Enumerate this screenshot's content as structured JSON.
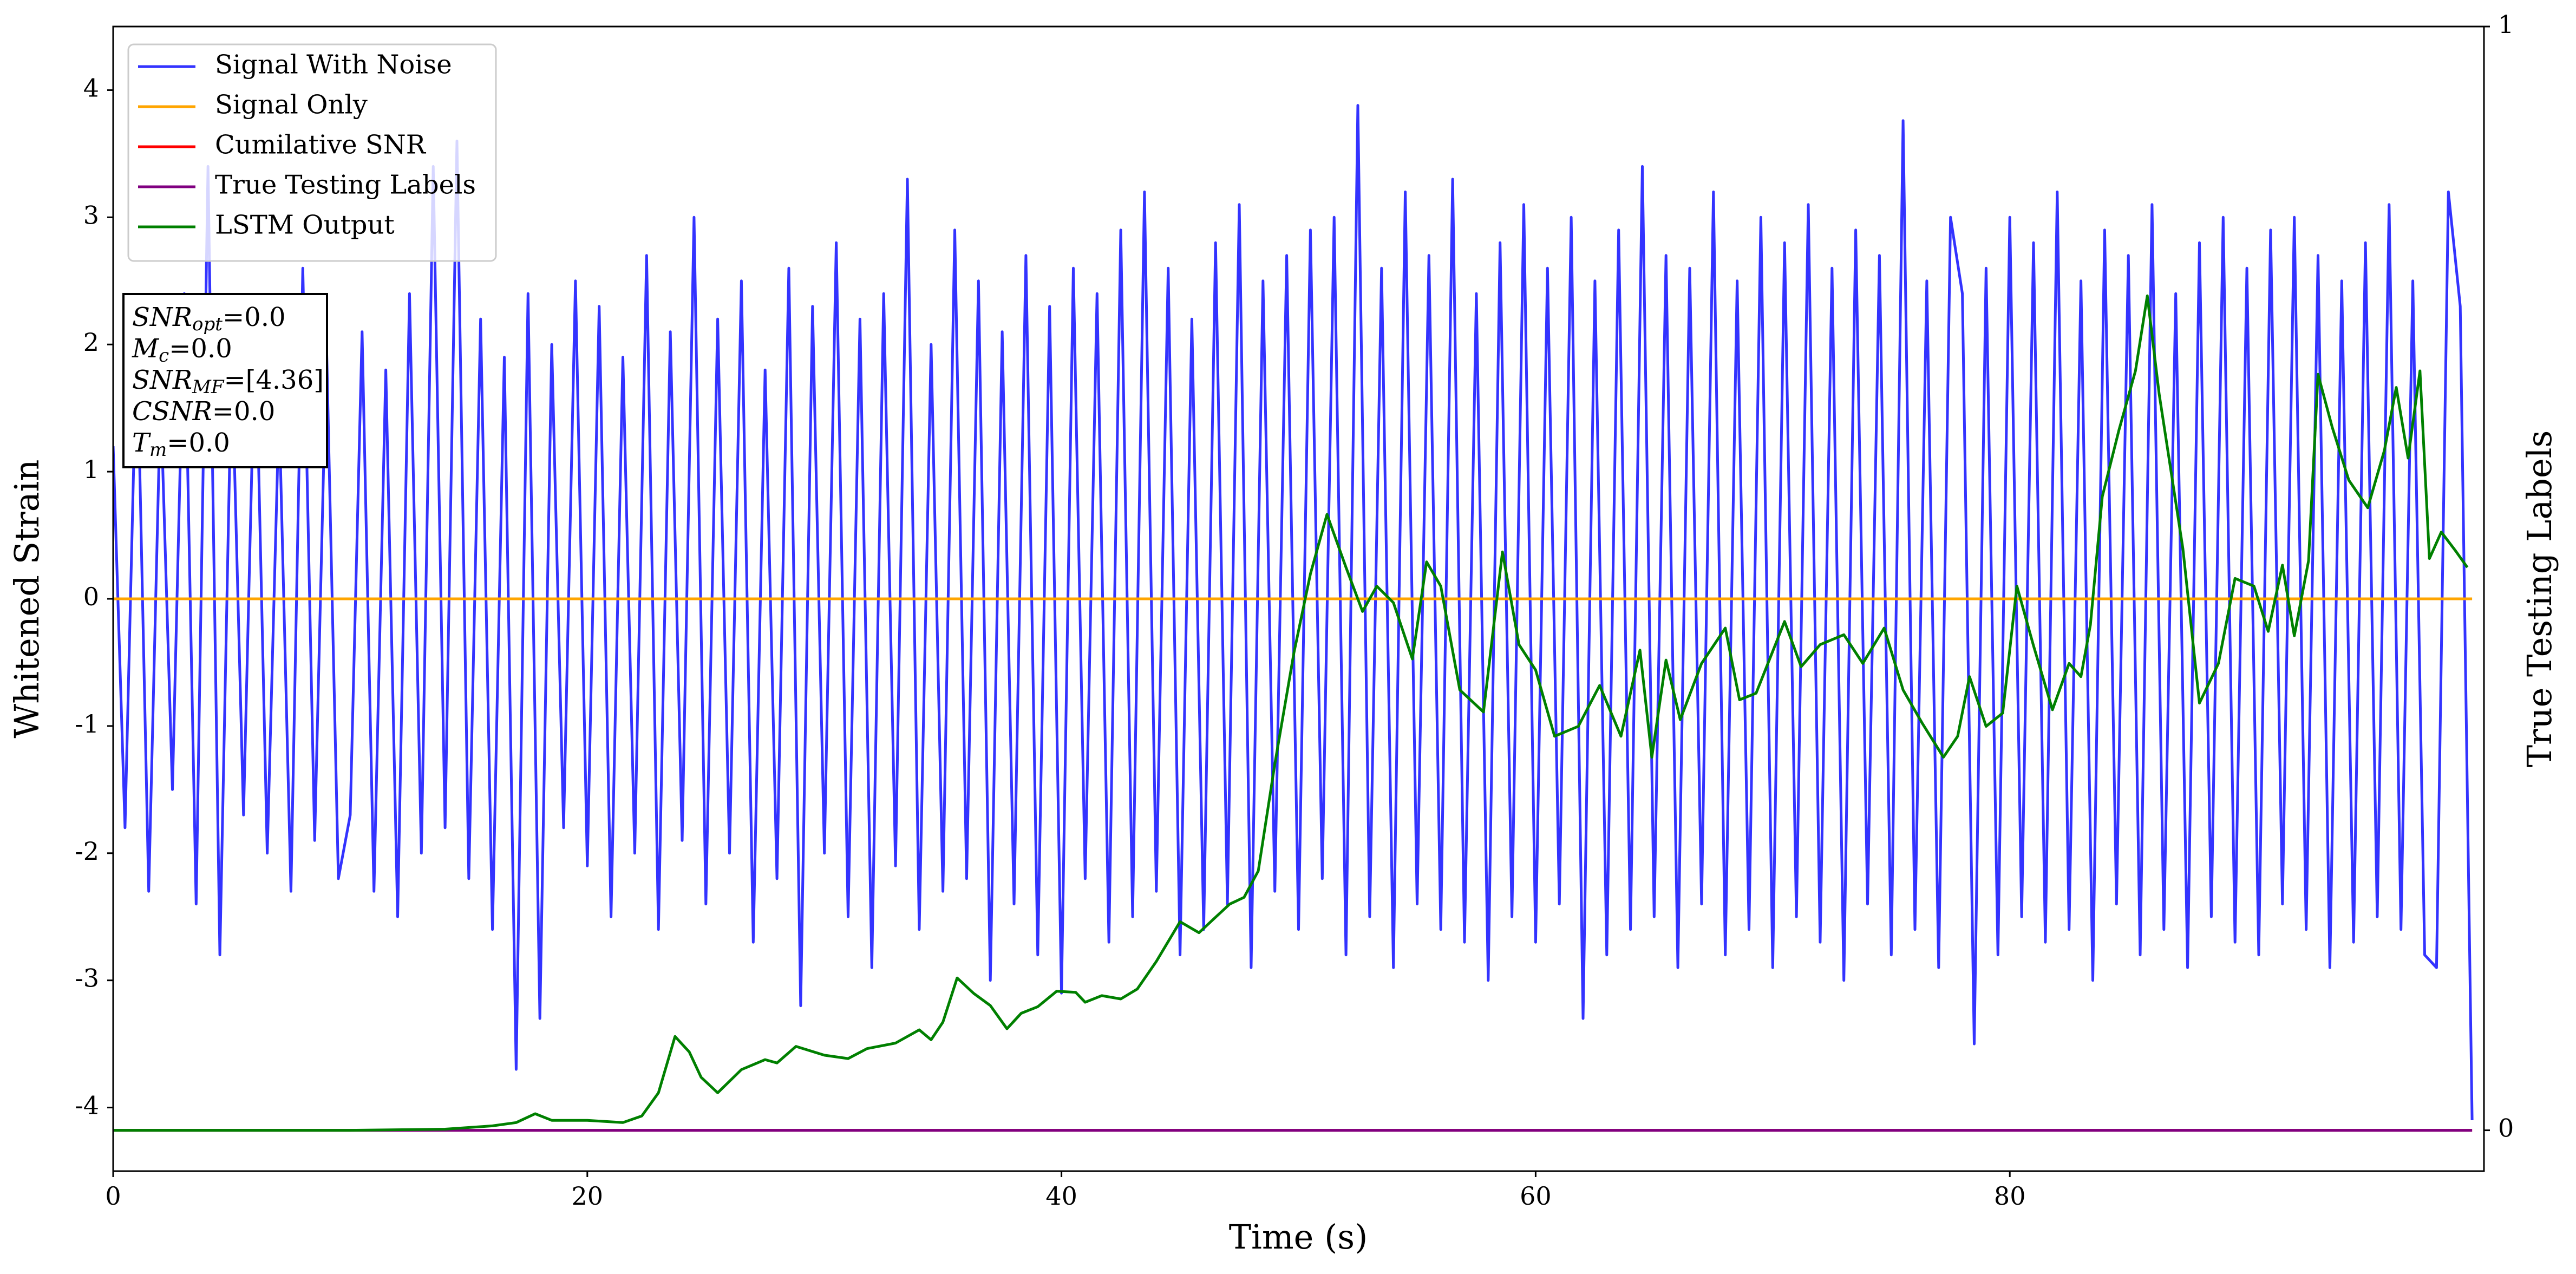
{
  "chart_data": {
    "type": "line",
    "xlabel": "Time (s)",
    "ylabel": "Whitened Strain",
    "y2label": "True Testing Labels",
    "xlim": [
      0,
      100
    ],
    "xticks": [
      0,
      20,
      40,
      60,
      80
    ],
    "ylim": [
      -4.5,
      4.5
    ],
    "yticks": [
      -4,
      -3,
      -2,
      -1,
      0,
      1,
      2,
      3,
      4
    ],
    "y2lim": [
      -0.037,
      1
    ],
    "y2ticks": [
      0,
      1
    ],
    "legend": "upper left",
    "annotation": [
      {
        "symbol": "SNR",
        "subscript": "opt",
        "text": "=0.0"
      },
      {
        "symbol": "M",
        "subscript": "c",
        "text": "=0.0"
      },
      {
        "symbol": "SNR",
        "subscript": "MF",
        "text": "=[4.36]"
      },
      {
        "symbol": "CSNR",
        "text": "=0.0"
      },
      {
        "symbol": "T",
        "subscript": "m",
        "text": "=0.0"
      }
    ],
    "series": [
      {
        "name": "Signal With Noise",
        "color": "#3333ff",
        "axis": "y",
        "x": [
          0,
          0.5,
          1,
          1.5,
          2,
          2.5,
          3,
          3.5,
          4,
          4.5,
          5,
          5.5,
          6,
          6.5,
          7,
          7.5,
          8,
          8.5,
          9,
          9.5,
          10,
          10.5,
          11,
          11.5,
          12,
          12.5,
          13,
          13.5,
          14,
          14.5,
          15,
          15.5,
          16,
          16.5,
          17,
          17.5,
          18,
          18.5,
          19,
          19.5,
          20,
          20.5,
          21,
          21.5,
          22,
          22.5,
          23,
          23.5,
          24,
          24.5,
          25,
          25.5,
          26,
          26.5,
          27,
          27.5,
          28,
          28.5,
          29,
          29.5,
          30,
          30.5,
          31,
          31.5,
          32,
          32.5,
          33,
          33.5,
          34,
          34.5,
          35,
          35.5,
          36,
          36.5,
          37,
          37.5,
          38,
          38.5,
          39,
          39.5,
          40,
          40.5,
          41,
          41.5,
          42,
          42.5,
          43,
          43.5,
          44,
          44.5,
          45,
          45.5,
          46,
          46.5,
          47,
          47.5,
          48,
          48.5,
          49,
          49.5,
          50,
          50.5,
          51,
          51.5,
          52,
          52.5,
          53,
          53.5,
          54,
          54.5,
          55,
          55.5,
          56,
          56.5,
          57,
          57.5,
          58,
          58.5,
          59,
          59.5,
          60,
          60.5,
          61,
          61.5,
          62,
          62.5,
          63,
          63.5,
          64,
          64.5,
          65,
          65.5,
          66,
          66.5,
          67,
          67.5,
          68,
          68.5,
          69,
          69.5,
          70,
          70.5,
          71,
          71.5,
          72,
          72.5,
          73,
          73.5,
          74,
          74.5,
          75,
          75.5,
          76,
          76.5,
          77,
          77.5,
          78,
          78.5,
          79,
          79.5,
          80,
          80.5,
          81,
          81.5,
          82,
          82.5,
          83,
          83.5,
          84,
          84.5,
          85,
          85.5,
          86,
          86.5,
          87,
          87.5,
          88,
          88.5,
          89,
          89.5,
          90,
          90.5,
          91,
          91.5,
          92,
          92.5,
          93,
          93.5,
          94,
          94.5,
          95,
          95.5,
          96,
          96.5,
          97,
          97.5,
          98,
          98.5,
          99,
          99.5
        ],
        "values": [
          1.2,
          -1.8,
          2.1,
          -2.3,
          1.6,
          -1.5,
          2.4,
          -2.4,
          3.4,
          -2.8,
          1.9,
          -1.7,
          2.2,
          -2.0,
          1.5,
          -2.3,
          2.6,
          -1.9,
          2.0,
          -2.2,
          -1.7,
          2.1,
          -2.3,
          1.8,
          -2.5,
          2.4,
          -2.0,
          3.4,
          -1.8,
          3.6,
          -2.2,
          2.2,
          -2.6,
          1.9,
          -3.7,
          2.4,
          -3.3,
          2.0,
          -1.8,
          2.5,
          -2.1,
          2.3,
          -2.5,
          1.9,
          -2.0,
          2.7,
          -2.6,
          2.1,
          -1.9,
          3.0,
          -2.4,
          2.2,
          -2.0,
          2.5,
          -2.7,
          1.8,
          -2.2,
          2.6,
          -3.2,
          2.3,
          -2.0,
          2.8,
          -2.5,
          2.2,
          -2.9,
          2.4,
          -2.1,
          3.3,
          -2.6,
          2.0,
          -2.3,
          2.9,
          -2.2,
          2.5,
          -3.0,
          2.1,
          -2.4,
          2.7,
          -2.8,
          2.3,
          -3.1,
          2.6,
          -2.2,
          2.4,
          -2.7,
          2.9,
          -2.5,
          3.2,
          -2.3,
          2.6,
          -2.8,
          2.2,
          -2.6,
          2.8,
          -2.4,
          3.1,
          -2.9,
          2.5,
          -2.3,
          2.7,
          -2.6,
          2.9,
          -2.2,
          3.0,
          -2.8,
          3.88,
          -2.5,
          2.6,
          -2.9,
          3.2,
          -2.4,
          2.7,
          -2.6,
          3.3,
          -2.7,
          2.4,
          -3.0,
          2.8,
          -2.5,
          3.1,
          -2.7,
          2.6,
          -2.4,
          3.0,
          -3.3,
          2.5,
          -2.8,
          2.9,
          -2.6,
          3.4,
          -2.5,
          2.7,
          -2.9,
          2.6,
          -2.4,
          3.2,
          -2.8,
          2.5,
          -2.6,
          3.0,
          -2.9,
          2.8,
          -2.5,
          3.1,
          -2.7,
          2.6,
          -3.0,
          2.9,
          -2.4,
          2.7,
          -2.8,
          3.76,
          -2.6,
          2.5,
          -2.9,
          3.0,
          2.4,
          -3.5,
          2.6,
          -2.8,
          3.0,
          -2.5,
          2.8,
          -2.7,
          3.2,
          -2.6,
          2.5,
          -3.0,
          2.9,
          -2.4,
          2.7,
          -2.8,
          3.1,
          -2.6,
          2.4,
          -2.9,
          2.8,
          -2.5,
          3.0,
          -2.7,
          2.6,
          -2.8,
          2.9,
          -2.4,
          3.0,
          -2.6,
          2.7,
          -2.9,
          2.5,
          -2.7,
          2.8,
          -2.5,
          3.1,
          -2.6,
          2.5,
          -2.8,
          -2.9,
          3.2,
          2.3,
          -4.1
        ]
      },
      {
        "name": "Signal Only",
        "color": "orange",
        "axis": "y",
        "x": [
          0,
          99.5
        ],
        "values": [
          0,
          0
        ]
      },
      {
        "name": "Cumilative SNR",
        "color": "red",
        "axis": "y2",
        "x": [
          0,
          99.5
        ],
        "values": [
          0,
          0
        ]
      },
      {
        "name": "True Testing Labels",
        "color": "purple",
        "axis": "y2",
        "x": [
          0,
          99.5
        ],
        "values": [
          0,
          0
        ]
      },
      {
        "name": "LSTM Output",
        "color": "green",
        "axis": "y2",
        "x": [
          0,
          10,
          14,
          16,
          17,
          17.8,
          18.5,
          20,
          21.5,
          22.3,
          23,
          23.7,
          24.3,
          24.8,
          25.5,
          26.5,
          27.5,
          28,
          28.8,
          30,
          31,
          31.8,
          33,
          34,
          34.5,
          35,
          35.6,
          36.3,
          37,
          37.7,
          38.3,
          39,
          39.8,
          40.6,
          41,
          41.7,
          42.5,
          43.2,
          44,
          45,
          45.8,
          46.5,
          47.1,
          47.7,
          48.3,
          49,
          49.8,
          50.5,
          51.2,
          52,
          52.7,
          53.3,
          54,
          54.8,
          55.4,
          56,
          56.8,
          57.8,
          58.6,
          59.3,
          60,
          60.8,
          61.8,
          62.7,
          63.6,
          64.4,
          64.9,
          65.5,
          66.1,
          67,
          68,
          68.6,
          69.3,
          70.5,
          71.2,
          72,
          73,
          73.8,
          74.7,
          75.5,
          76.3,
          77.2,
          77.8,
          78.3,
          79,
          79.7,
          80.3,
          81,
          81.8,
          82.5,
          83,
          83.4,
          83.9,
          84.6,
          85.3,
          85.8,
          86.3,
          87.3,
          88,
          88.8,
          89.5,
          90.3,
          90.9,
          91.5,
          92,
          92.6,
          93,
          93.6,
          94.3,
          95.1,
          95.8,
          96.3,
          96.8,
          97.3,
          97.7,
          98.2,
          98.8,
          99.3
        ],
        "values": [
          0,
          0,
          0.001,
          0.004,
          0.007,
          0.015,
          0.009,
          0.009,
          0.007,
          0.013,
          0.034,
          0.085,
          0.071,
          0.048,
          0.034,
          0.055,
          0.064,
          0.061,
          0.076,
          0.068,
          0.065,
          0.074,
          0.079,
          0.091,
          0.082,
          0.098,
          0.138,
          0.124,
          0.113,
          0.092,
          0.106,
          0.112,
          0.126,
          0.125,
          0.116,
          0.122,
          0.119,
          0.128,
          0.153,
          0.189,
          0.179,
          0.193,
          0.205,
          0.211,
          0.235,
          0.332,
          0.432,
          0.504,
          0.558,
          0.51,
          0.47,
          0.493,
          0.478,
          0.427,
          0.515,
          0.493,
          0.399,
          0.379,
          0.524,
          0.44,
          0.417,
          0.357,
          0.366,
          0.403,
          0.357,
          0.435,
          0.338,
          0.426,
          0.372,
          0.423,
          0.455,
          0.39,
          0.396,
          0.461,
          0.42,
          0.44,
          0.449,
          0.423,
          0.455,
          0.399,
          0.369,
          0.338,
          0.357,
          0.411,
          0.366,
          0.378,
          0.493,
          0.439,
          0.381,
          0.423,
          0.411,
          0.458,
          0.574,
          0.634,
          0.688,
          0.756,
          0.667,
          0.527,
          0.387,
          0.423,
          0.5,
          0.493,
          0.452,
          0.512,
          0.448,
          0.516,
          0.685,
          0.637,
          0.589,
          0.564,
          0.616,
          0.673,
          0.609,
          0.688,
          0.518,
          0.542,
          0.525,
          0.51
        ]
      }
    ]
  }
}
